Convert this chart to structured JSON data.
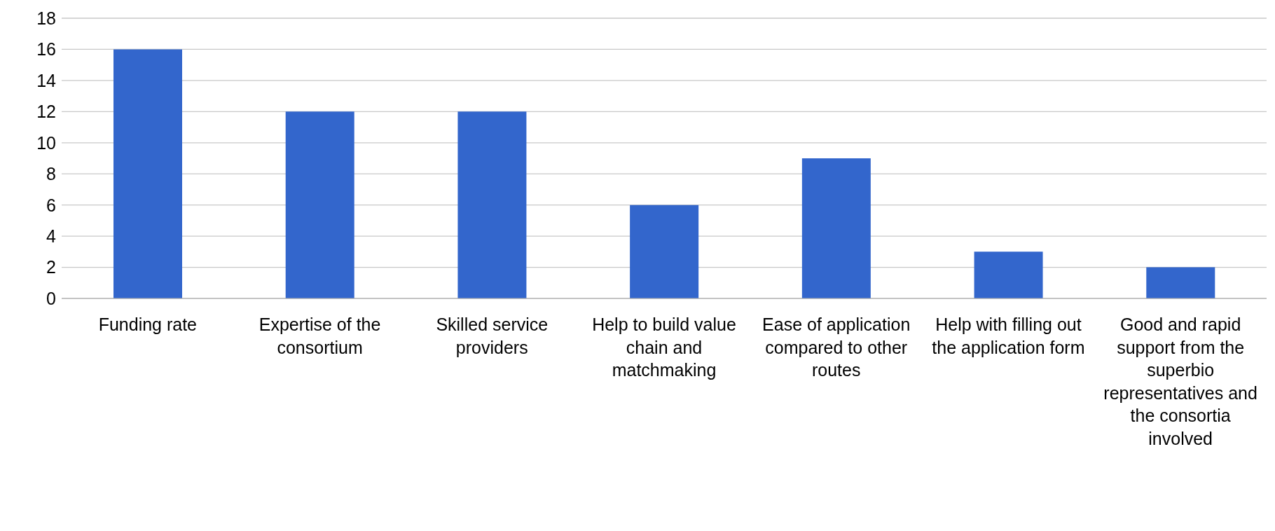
{
  "chart_data": {
    "type": "bar",
    "categories": [
      "Funding rate",
      "Expertise of the consortium",
      "Skilled service providers",
      "Help to build value chain and matchmaking",
      "Ease of application compared to other routes",
      "Help with filling out the application form",
      "Good and rapid support from the superbio representatives and the consortia involved"
    ],
    "values": [
      16,
      12,
      12,
      6,
      9,
      3,
      2
    ],
    "color": "#3366cc",
    "ylim": [
      0,
      18
    ],
    "yticks": [
      0,
      2,
      4,
      6,
      8,
      10,
      12,
      14,
      16,
      18
    ],
    "grid": "y"
  }
}
